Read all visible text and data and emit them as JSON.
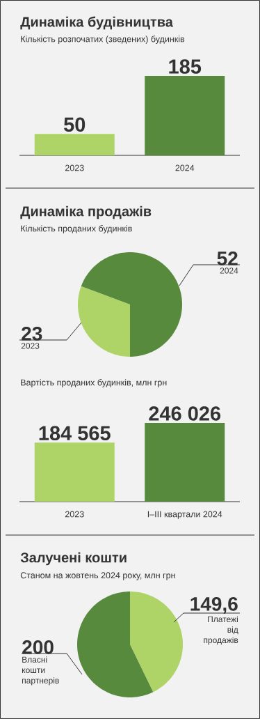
{
  "chart_data": [
    {
      "type": "bar",
      "title": "Динаміка будівництва",
      "subtitle": "Кількість розпочатих (зведених) будинків",
      "categories": [
        "2023",
        "2024"
      ],
      "values": [
        50,
        185
      ],
      "colors": [
        "#aed468",
        "#588a3e"
      ],
      "data_labels": true
    },
    {
      "type": "pie",
      "title": "Динаміка продажів",
      "subtitle": "Кількість проданих будинків",
      "categories": [
        "2023",
        "2024"
      ],
      "values": [
        23,
        52
      ],
      "colors": [
        "#aed468",
        "#588a3e"
      ],
      "data_labels": true
    },
    {
      "type": "bar",
      "subtitle": "Вартість проданих будинків, млн грн",
      "categories": [
        "2023",
        "I–III квартали 2024"
      ],
      "values": [
        184565,
        246026
      ],
      "colors": [
        "#aed468",
        "#588a3e"
      ],
      "value_labels": [
        "184 565",
        "246 026"
      ]
    },
    {
      "type": "pie",
      "title": "Залучені кошти",
      "subtitle": "Станом на жовтень 2024 року, млн грн",
      "categories": [
        "Платежі від продажів",
        "Власні кошти партнерів"
      ],
      "values": [
        149.6,
        200
      ],
      "colors": [
        "#aed468",
        "#588a3e"
      ],
      "value_labels": [
        "149,6",
        "200"
      ]
    }
  ]
}
